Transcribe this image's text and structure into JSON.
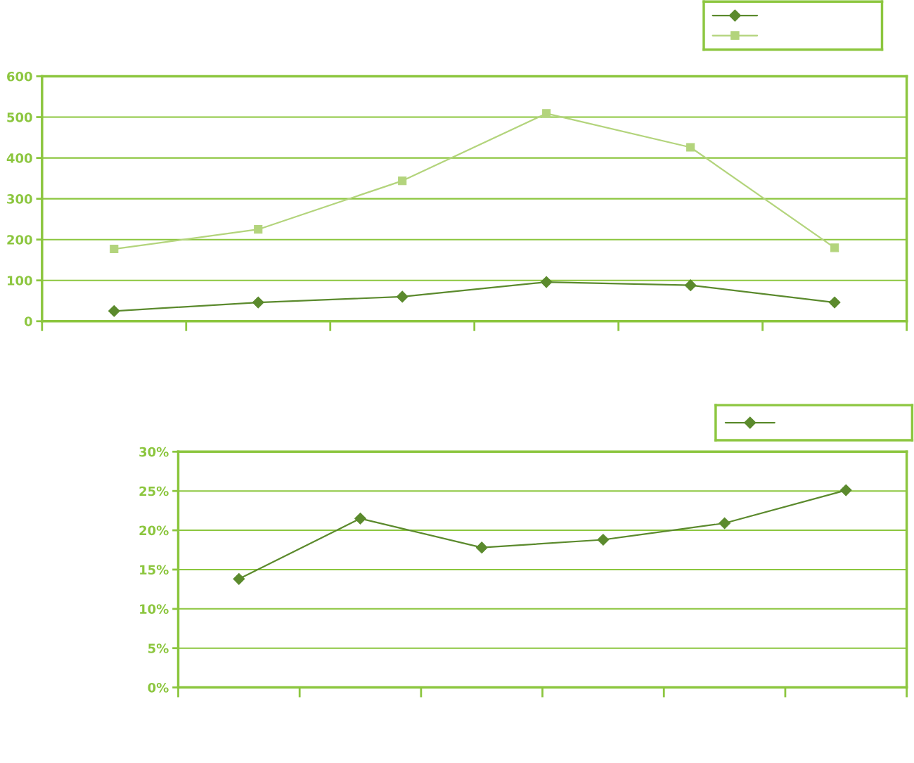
{
  "chart_data": [
    {
      "type": "line",
      "categories": [
        null,
        null,
        null,
        null,
        null,
        null
      ],
      "series": [
        {
          "color": "#5b8a2d",
          "marker": "diamond",
          "values": [
            25,
            46,
            60,
            96,
            88,
            46
          ]
        },
        {
          "color": "#b3d47c",
          "marker": "square",
          "values": [
            177,
            225,
            344,
            509,
            426,
            180
          ]
        }
      ],
      "ylim": [
        0,
        600
      ],
      "yticks": [
        0,
        100,
        200,
        300,
        400,
        500,
        600
      ],
      "grid": "y",
      "tick_labels": "y"
    },
    {
      "type": "line",
      "categories": [
        null,
        null,
        null,
        null,
        null,
        null
      ],
      "series": [
        {
          "color": "#5b8a2d",
          "marker": "diamond",
          "values": [
            13.8,
            21.5,
            17.8,
            18.8,
            20.9,
            25.1
          ]
        }
      ],
      "ylim": [
        0,
        30
      ],
      "yticks": [
        {
          "value": 0,
          "label": "0%"
        },
        {
          "value": 5,
          "label": "5%"
        },
        {
          "value": 10,
          "label": "10%"
        },
        {
          "value": 15,
          "label": "15%"
        },
        {
          "value": 20,
          "label": "20%"
        },
        {
          "value": 25,
          "label": "25%"
        },
        {
          "value": 30,
          "label": "30%"
        }
      ],
      "grid": "y",
      "tick_labels": "y"
    }
  ]
}
